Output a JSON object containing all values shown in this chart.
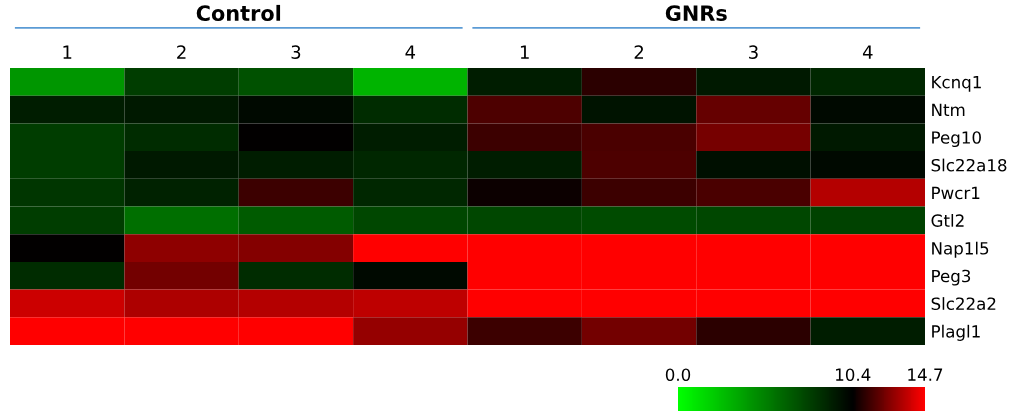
{
  "chart_data": {
    "type": "heatmap",
    "categories": [
      "1",
      "2",
      "3",
      "4",
      "1",
      "2",
      "3",
      "4"
    ],
    "y_categories": [
      "Kcnq1",
      "Ntm",
      "Peg10",
      "Slc22a18",
      "Pwcr1",
      "Gtl2",
      "Nap1l5",
      "Peg3",
      "Slc22a2",
      "Plagl1"
    ],
    "cells": [
      [
        4.3,
        7.9,
        7.1,
        3.1,
        9.2,
        11.1,
        9.4,
        8.8
      ],
      [
        9.2,
        9.4,
        10.0,
        8.6,
        11.7,
        9.6,
        12.1,
        10.0
      ],
      [
        7.9,
        8.6,
        10.4,
        9.2,
        11.4,
        11.6,
        12.4,
        9.4
      ],
      [
        7.9,
        9.4,
        9.2,
        8.8,
        9.2,
        11.7,
        9.8,
        10.0
      ],
      [
        8.2,
        9.0,
        11.4,
        8.8,
        10.6,
        11.4,
        11.6,
        13.4
      ],
      [
        7.9,
        5.9,
        6.7,
        7.5,
        7.5,
        7.3,
        7.5,
        7.7
      ],
      [
        10.4,
        12.8,
        12.6,
        14.7,
        14.7,
        14.7,
        14.7,
        14.7
      ],
      [
        8.6,
        12.3,
        8.6,
        10.0,
        14.7,
        14.7,
        14.7,
        14.7
      ],
      [
        13.8,
        13.3,
        13.4,
        13.6,
        14.7,
        14.7,
        14.7,
        14.7
      ],
      [
        14.7,
        14.7,
        14.7,
        12.9,
        11.4,
        12.3,
        11.1,
        9.2
      ]
    ],
    "clim": [
      0,
      14.7
    ],
    "cticks": [
      {
        "value": 0,
        "label": "0.0"
      },
      10.4,
      14.7
    ],
    "annotations": [
      "Control",
      "GNRs"
    ]
  }
}
